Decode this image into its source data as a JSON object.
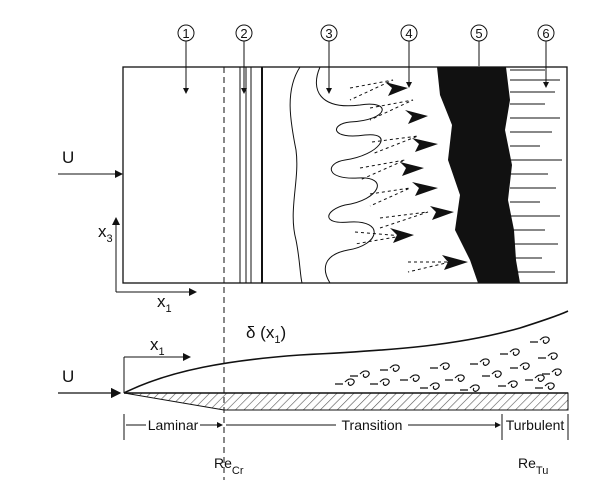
{
  "markers": [
    "1",
    "2",
    "3",
    "4",
    "5",
    "6"
  ],
  "top": {
    "flow_label": "U",
    "axis_x": "x",
    "axis_x_sub": "1",
    "axis_y": "x",
    "axis_y_sub": "3"
  },
  "bottom": {
    "flow_label": "U",
    "axis_x": "x",
    "axis_x_sub": "1",
    "delta_label": "δ (x",
    "delta_sub": "1",
    "delta_close": ")",
    "regions": [
      "Laminar",
      "Transition",
      "Turbulent"
    ],
    "re_cr": "Re",
    "re_cr_sub": "Cr",
    "re_tu": "Re",
    "re_tu_sub": "Tu"
  },
  "colors": {
    "ink": "#111111",
    "bg": "#ffffff",
    "hatch": "#555555"
  }
}
